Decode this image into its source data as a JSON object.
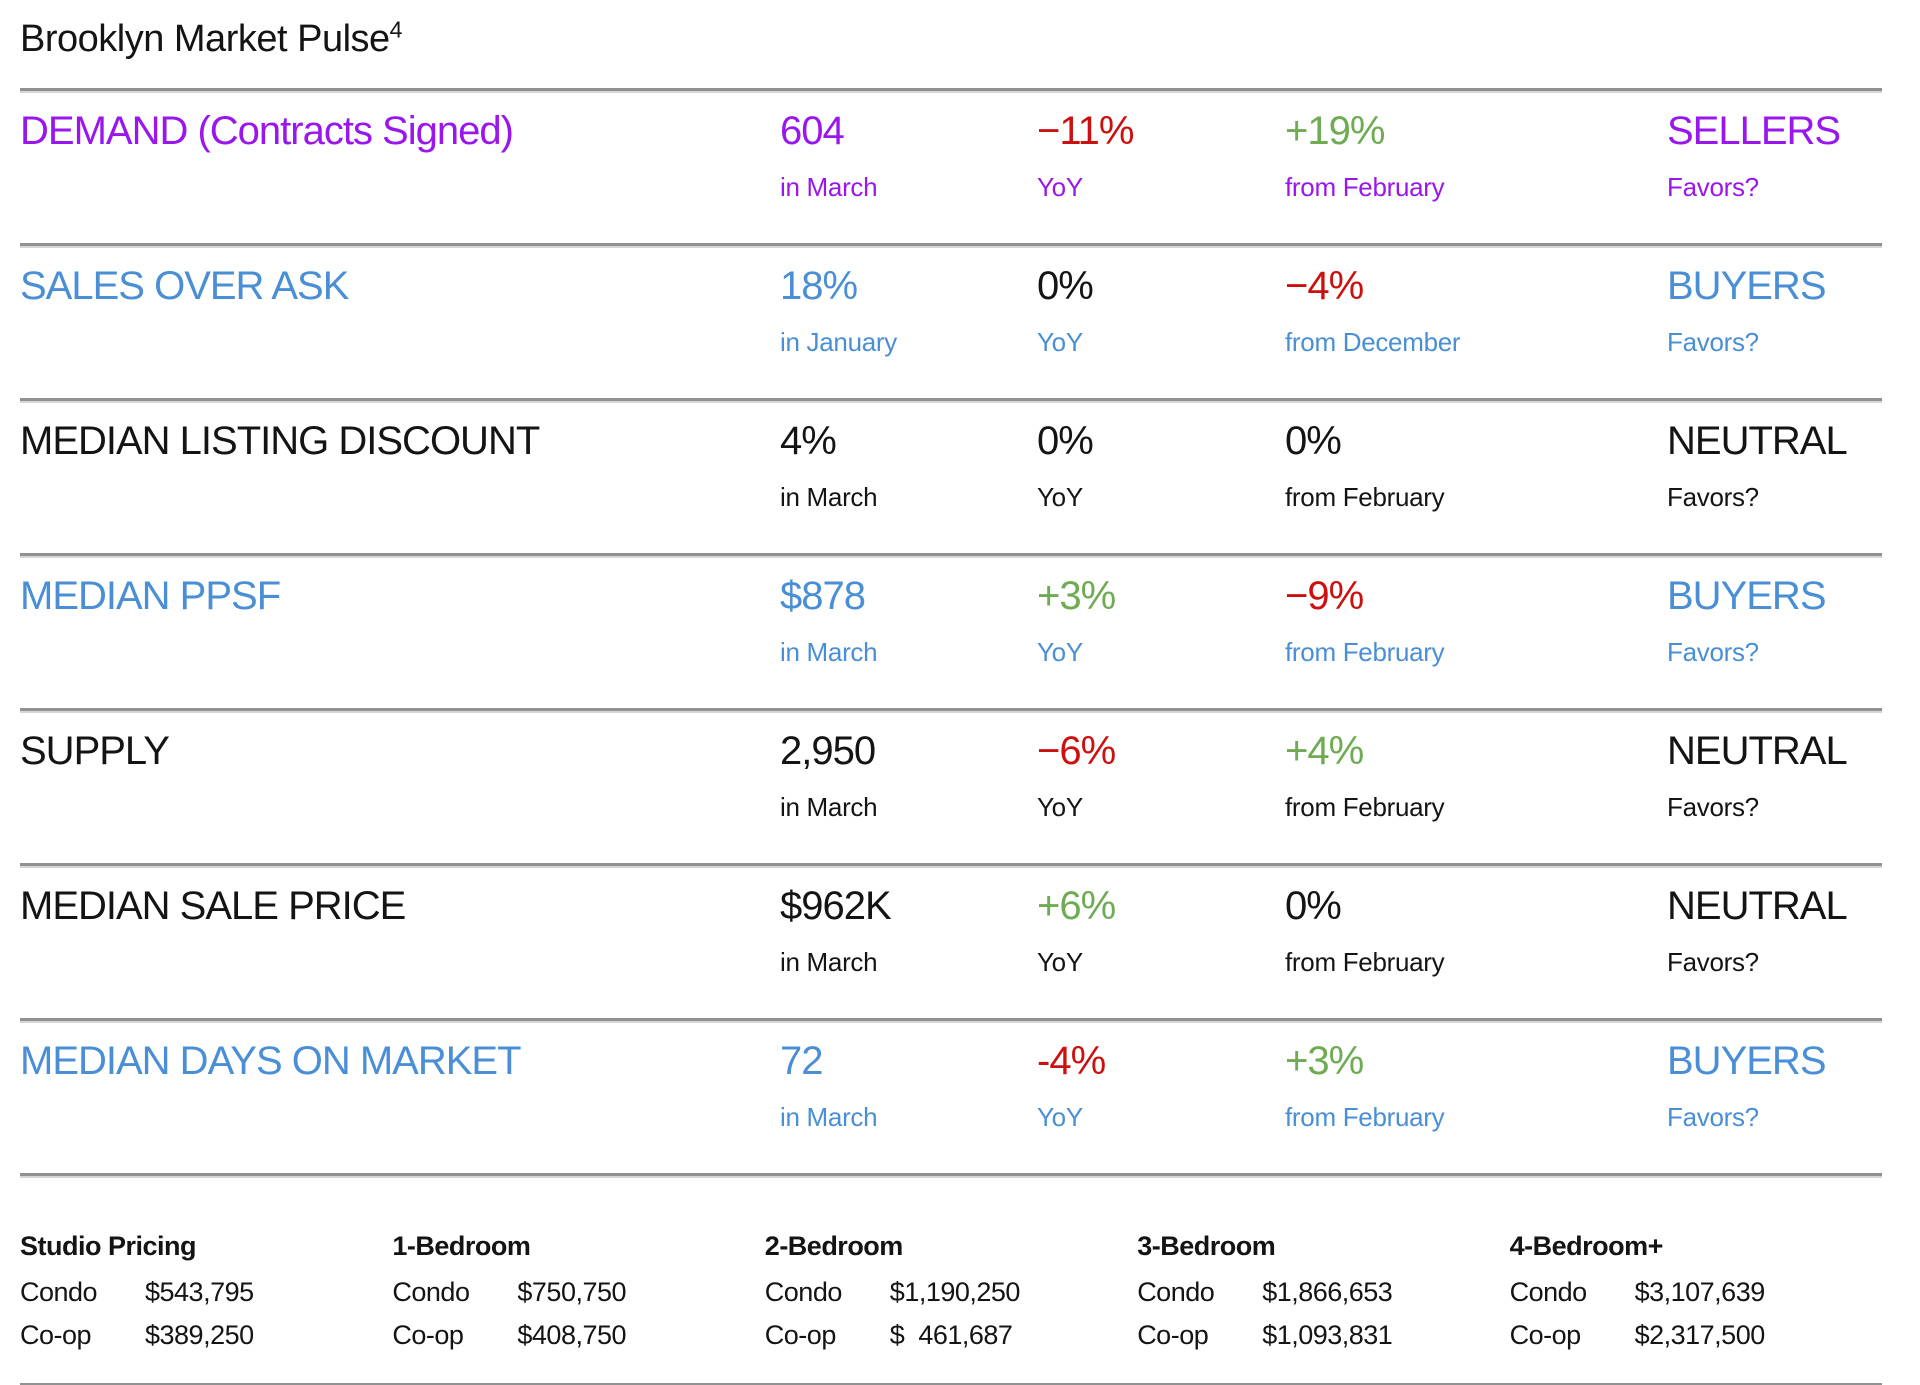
{
  "colors": {
    "purple": "#9916EC",
    "blue": "#4A8FD5",
    "red": "#CC1010",
    "green": "#6EAB52",
    "black": "#141414"
  },
  "title": {
    "text": "Brooklyn Market Pulse",
    "superscript": "4"
  },
  "rows": [
    {
      "label": "DEMAND (Contracts Signed)",
      "label_color": "purple",
      "cells": [
        {
          "value": "604",
          "value_color": "purple",
          "sub": "in March",
          "sub_color": "purple"
        },
        {
          "value": "−11%",
          "value_color": "red",
          "sub": "YoY",
          "sub_color": "purple"
        },
        {
          "value": "+19%",
          "value_color": "green",
          "sub": "from February",
          "sub_color": "purple"
        },
        {
          "value": "SELLERS",
          "value_color": "purple",
          "sub": "Favors?",
          "sub_color": "purple"
        }
      ]
    },
    {
      "label": "SALES OVER ASK",
      "label_color": "blue",
      "cells": [
        {
          "value": "18%",
          "value_color": "blue",
          "sub": "in January",
          "sub_color": "blue"
        },
        {
          "value": "0%",
          "value_color": "black",
          "sub": "YoY",
          "sub_color": "blue"
        },
        {
          "value": "−4%",
          "value_color": "red",
          "sub": "from December",
          "sub_color": "blue"
        },
        {
          "value": "BUYERS",
          "value_color": "blue",
          "sub": "Favors?",
          "sub_color": "blue"
        }
      ]
    },
    {
      "label": "MEDIAN LISTING DISCOUNT",
      "label_color": "black",
      "cells": [
        {
          "value": "4%",
          "value_color": "black",
          "sub": "in March",
          "sub_color": "black"
        },
        {
          "value": "0%",
          "value_color": "black",
          "sub": "YoY",
          "sub_color": "black"
        },
        {
          "value": "0%",
          "value_color": "black",
          "sub": "from February",
          "sub_color": "black"
        },
        {
          "value": "NEUTRAL",
          "value_color": "black",
          "sub": "Favors?",
          "sub_color": "black"
        }
      ]
    },
    {
      "label": "MEDIAN PPSF",
      "label_color": "blue",
      "cells": [
        {
          "value": "$878",
          "value_color": "blue",
          "sub": "in March",
          "sub_color": "blue"
        },
        {
          "value": "+3%",
          "value_color": "green",
          "sub": "YoY",
          "sub_color": "blue"
        },
        {
          "value": "−9%",
          "value_color": "red",
          "sub": "from February",
          "sub_color": "blue"
        },
        {
          "value": "BUYERS",
          "value_color": "blue",
          "sub": "Favors?",
          "sub_color": "blue"
        }
      ]
    },
    {
      "label": "SUPPLY",
      "label_color": "black",
      "cells": [
        {
          "value": "2,950",
          "value_color": "black",
          "sub": "in March",
          "sub_color": "black"
        },
        {
          "value": "−6%",
          "value_color": "red",
          "sub": "YoY",
          "sub_color": "black"
        },
        {
          "value": "+4%",
          "value_color": "green",
          "sub": "from February",
          "sub_color": "black"
        },
        {
          "value": "NEUTRAL",
          "value_color": "black",
          "sub": "Favors?",
          "sub_color": "black"
        }
      ]
    },
    {
      "label": "MEDIAN SALE PRICE",
      "label_color": "black",
      "cells": [
        {
          "value": "$962K",
          "value_color": "black",
          "sub": "in March",
          "sub_color": "black"
        },
        {
          "value": "+6%",
          "value_color": "green",
          "sub": "YoY",
          "sub_color": "black"
        },
        {
          "value": "0%",
          "value_color": "black",
          "sub": "from February",
          "sub_color": "black"
        },
        {
          "value": "NEUTRAL",
          "value_color": "black",
          "sub": "Favors?",
          "sub_color": "black"
        }
      ]
    },
    {
      "label": "MEDIAN DAYS ON MARKET",
      "label_color": "blue",
      "cells": [
        {
          "value": "72",
          "value_color": "blue",
          "sub": "in March",
          "sub_color": "blue"
        },
        {
          "value": "-4%",
          "value_color": "red",
          "sub": "YoY",
          "sub_color": "blue"
        },
        {
          "value": "+3%",
          "value_color": "green",
          "sub": "from February",
          "sub_color": "blue"
        },
        {
          "value": "BUYERS",
          "value_color": "blue",
          "sub": "Favors?",
          "sub_color": "blue"
        }
      ]
    }
  ],
  "pricing": [
    {
      "header": "Studio Pricing",
      "items": [
        {
          "label": "Condo",
          "value": "$543,795"
        },
        {
          "label": "Co-op",
          "value": "$389,250"
        }
      ]
    },
    {
      "header": "1-Bedroom",
      "items": [
        {
          "label": "Condo",
          "value": "$750,750"
        },
        {
          "label": "Co-op",
          "value": "$408,750"
        }
      ]
    },
    {
      "header": "2-Bedroom",
      "items": [
        {
          "label": "Condo",
          "value": "$1,190,250"
        },
        {
          "label": "Co-op",
          "value": "$  461,687"
        }
      ]
    },
    {
      "header": "3-Bedroom",
      "items": [
        {
          "label": "Condo",
          "value": "$1,866,653"
        },
        {
          "label": "Co-op",
          "value": "$1,093,831"
        }
      ]
    },
    {
      "header": "4-Bedroom+",
      "items": [
        {
          "label": "Condo",
          "value": "$3,107,639"
        },
        {
          "label": "Co-op",
          "value": "$2,317,500"
        }
      ]
    }
  ]
}
